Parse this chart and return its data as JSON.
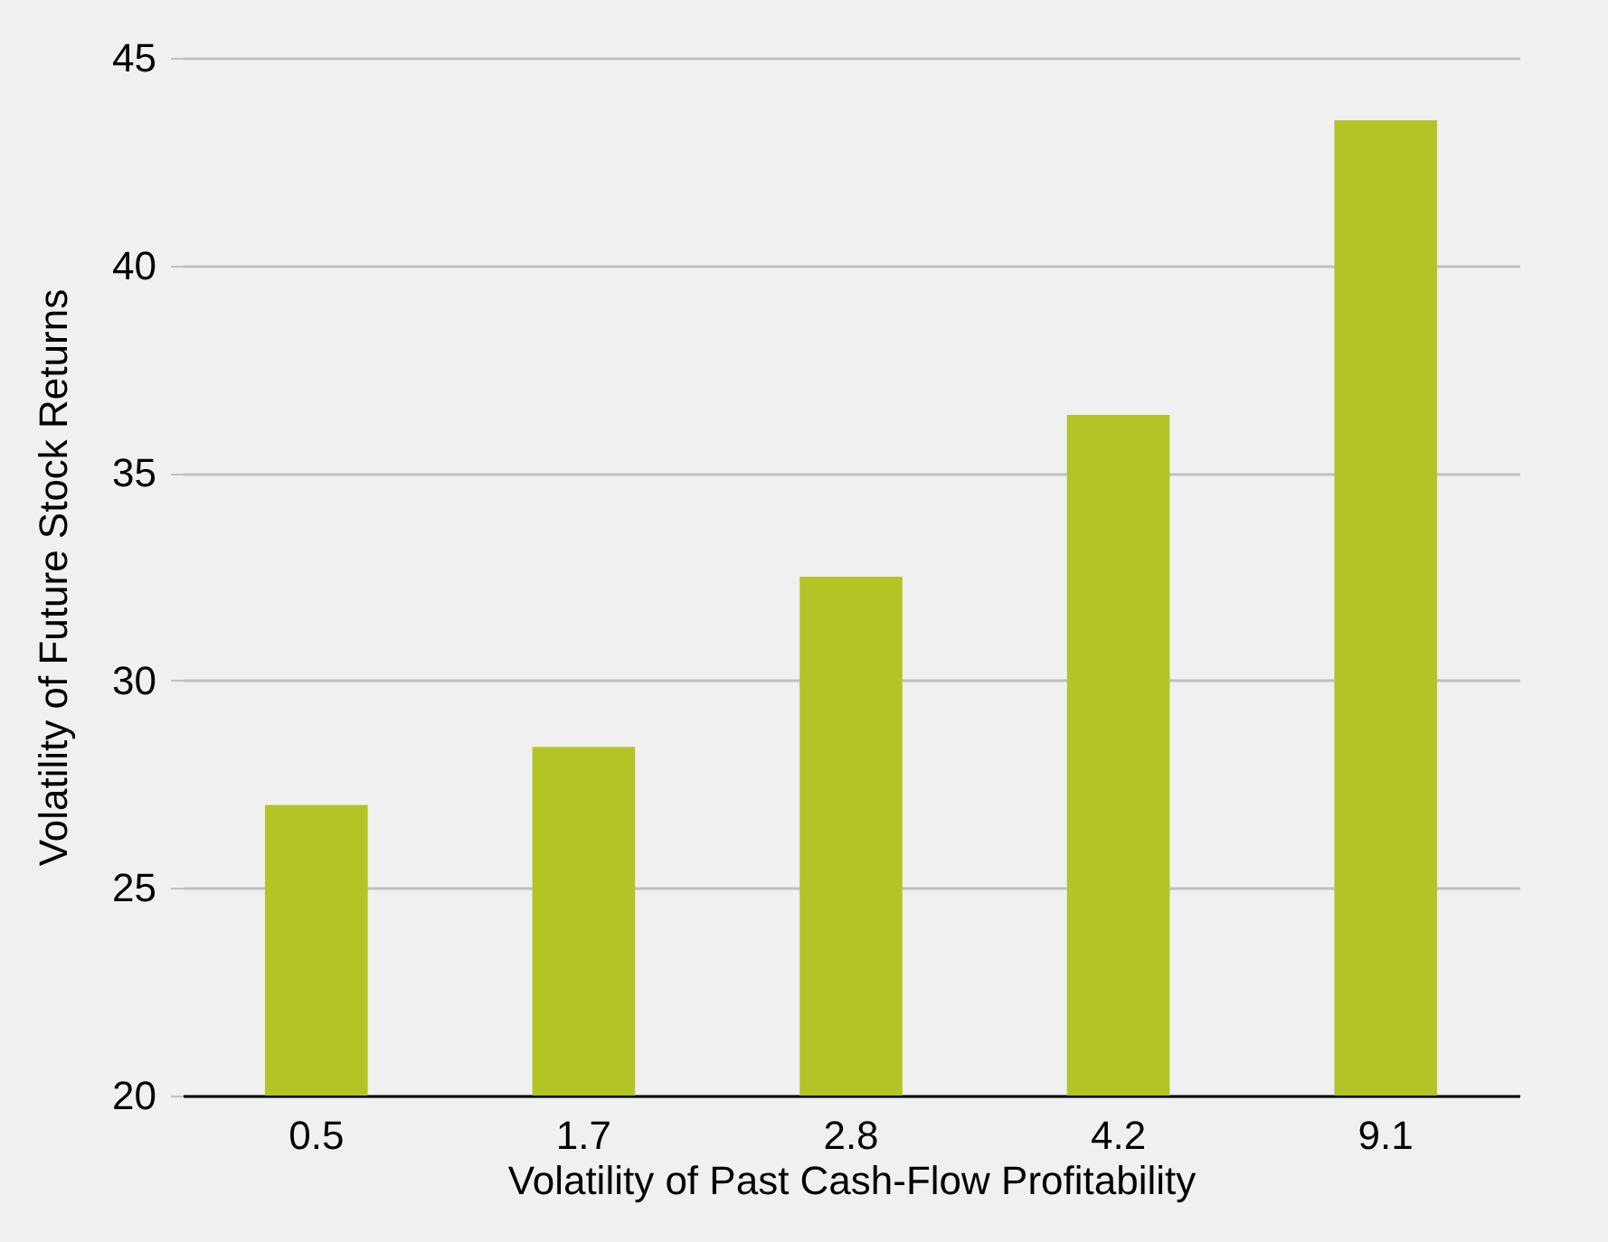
{
  "chart_data": {
    "type": "bar",
    "xlabel": "Volatility of Past Cash-Flow Profitability",
    "ylabel": "Volatility of Future Stock Returns",
    "categories": [
      "0.5",
      "1.7",
      "2.8",
      "4.2",
      "9.1"
    ],
    "values": [
      27.0,
      28.4,
      32.5,
      36.4,
      43.5
    ],
    "color": "#b3c526",
    "ylim": [
      20,
      45
    ],
    "yticks": [
      20,
      25,
      30,
      35,
      40,
      45
    ],
    "grid": "y"
  }
}
